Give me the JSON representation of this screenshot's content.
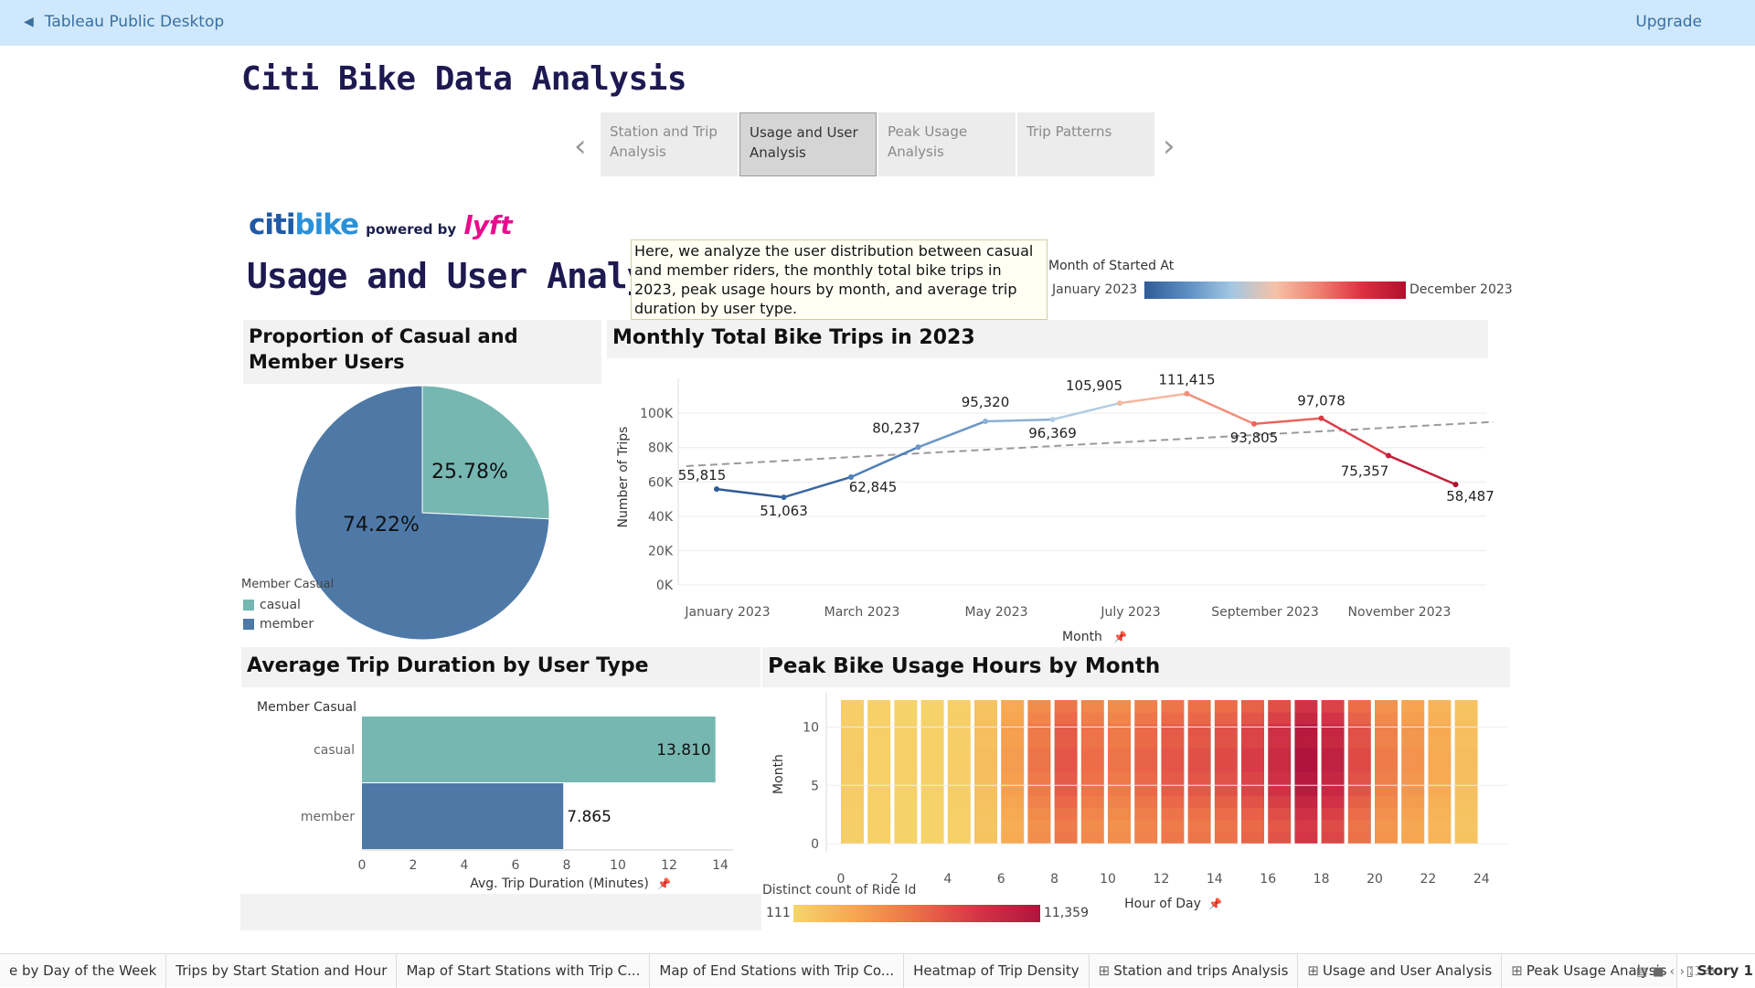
{
  "app": {
    "title": "Tableau Public Desktop",
    "upgrade": "Upgrade"
  },
  "story": {
    "title": "Citi Bike Data Analysis"
  },
  "story_points": [
    {
      "label": "Station and Trip Analysis",
      "active": false
    },
    {
      "label": "Usage and User Analysis",
      "active": true
    },
    {
      "label": "Peak Usage Analysis",
      "active": false
    },
    {
      "label": "Trip Patterns",
      "active": false
    }
  ],
  "logo": {
    "citi": "citi",
    "bike": "bike",
    "powered_by": "powered by",
    "lyft": "lyft"
  },
  "dashboard": {
    "title": "Usage and User Analysis",
    "description": "Here, we analyze the user distribution between casual and member riders, the monthly total bike trips in 2023, peak usage hours by month, and average trip duration by user type."
  },
  "month_legend": {
    "title": "Month of Started At",
    "start": "January 2023",
    "end": "December 2023"
  },
  "panels": {
    "pie_title": "Proportion of Casual and Member Users",
    "line_title": "Monthly Total Bike Trips in 2023",
    "bar_title": "Average Trip Duration by User Type",
    "heat_title": "Peak Bike Usage Hours by Month"
  },
  "pie_legend": {
    "title": "Member Casual",
    "items": [
      "casual",
      "member"
    ]
  },
  "colors": {
    "casual": "#76b7b2",
    "member": "#4e79a7",
    "trend": "#9a9a9a"
  },
  "chart_data": [
    {
      "type": "pie",
      "categories": [
        "casual",
        "member"
      ],
      "values": [
        25.78,
        74.22
      ],
      "labels": [
        "25.78%",
        "74.22%"
      ]
    },
    {
      "type": "line",
      "x": [
        "January 2023",
        "February 2023",
        "March 2023",
        "April 2023",
        "May 2023",
        "June 2023",
        "July 2023",
        "August 2023",
        "September 2023",
        "October 2023",
        "November 2023",
        "December 2023"
      ],
      "values": [
        55815,
        51063,
        62845,
        80237,
        95320,
        96369,
        105905,
        111415,
        93805,
        97078,
        75357,
        58487
      ],
      "value_labels": [
        "55,815",
        "51,063",
        "62,845",
        "80,237",
        "95,320",
        "96,369",
        "105,905",
        "111,415",
        "93,805",
        "97,078",
        "75,357",
        "58,487"
      ],
      "x_tick_labels": [
        "January 2023",
        "March 2023",
        "May 2023",
        "July 2023",
        "September 2023",
        "November 2023"
      ],
      "y_tick_labels": [
        "0K",
        "20K",
        "40K",
        "60K",
        "80K",
        "100K"
      ],
      "ylabel": "Number of Trips",
      "xlabel": "Month",
      "ylim": [
        0,
        115000
      ],
      "trend_line": true
    },
    {
      "type": "bar",
      "orientation": "horizontal",
      "categories": [
        "casual",
        "member"
      ],
      "values": [
        13.81,
        7.865
      ],
      "value_labels": [
        "13.810",
        "7.865"
      ],
      "category_header": "Member Casual",
      "xlabel": "Avg. Trip Duration (Minutes)",
      "x_tick_labels": [
        "0",
        "2",
        "4",
        "6",
        "8",
        "10",
        "12",
        "14"
      ],
      "xlim": [
        0,
        14.5
      ]
    },
    {
      "type": "heatmap",
      "xlabel": "Hour of Day",
      "ylabel": "Month",
      "x_tick_labels": [
        "0",
        "2",
        "4",
        "6",
        "8",
        "10",
        "12",
        "14",
        "16",
        "18",
        "20",
        "22",
        "24"
      ],
      "y_tick_labels": [
        "0",
        "5",
        "10"
      ],
      "color_legend": {
        "title": "Distinct count of Ride Id",
        "min": "111",
        "max": "11,359"
      },
      "hours": 24,
      "months": 12
    }
  ],
  "bottom_tabs": [
    {
      "label": "e by Day of the Week",
      "icon": "",
      "active": false
    },
    {
      "label": "Trips by Start Station and Hour",
      "icon": "",
      "active": false
    },
    {
      "label": "Map of Start Stations with Trip C...",
      "icon": "",
      "active": false
    },
    {
      "label": "Map of End Stations with Trip Co...",
      "icon": "",
      "active": false
    },
    {
      "label": "Heatmap of Trip Density",
      "icon": "",
      "active": false
    },
    {
      "label": "Station and trips Analysis",
      "icon": "⊞",
      "active": false
    },
    {
      "label": "Usage and User Analysis",
      "icon": "⊞",
      "active": false
    },
    {
      "label": "Peak Usage Analysis",
      "icon": "⊞",
      "active": false
    },
    {
      "label": "Story 1",
      "icon": "▯",
      "active": true
    }
  ]
}
